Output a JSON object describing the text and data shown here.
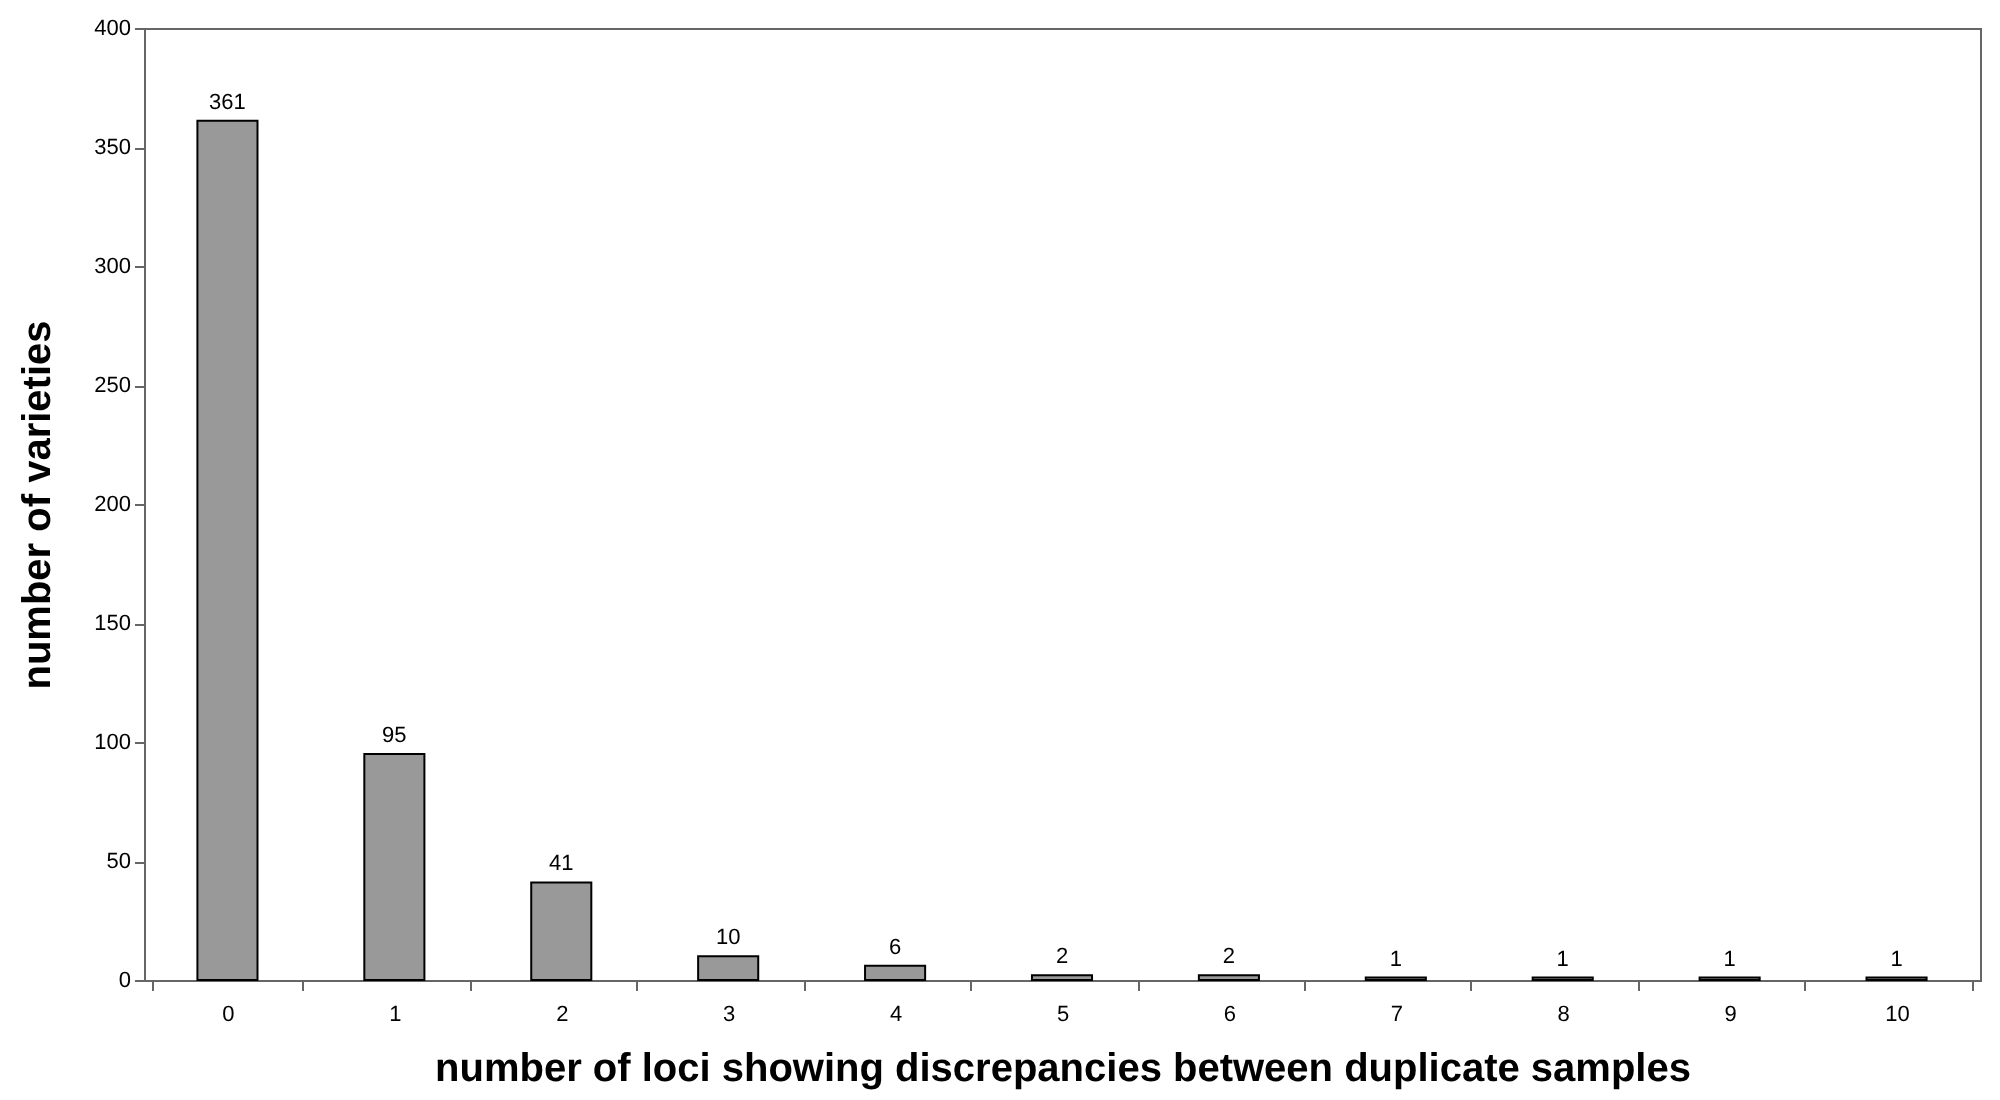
{
  "chart_data": {
    "type": "bar",
    "xlabel": "number of loci showing discrepancies between duplicate samples",
    "ylabel": "number of varieties",
    "categories": [
      "0",
      "1",
      "2",
      "3",
      "4",
      "5",
      "6",
      "7",
      "8",
      "9",
      "10"
    ],
    "values": [
      361,
      95,
      41,
      10,
      6,
      2,
      2,
      1,
      1,
      1,
      1
    ],
    "color": "#999999",
    "ylim": [
      0,
      400
    ],
    "yticks": [
      0,
      50,
      100,
      150,
      200,
      250,
      300,
      350,
      400
    ],
    "grid": false,
    "data_labels": true
  }
}
